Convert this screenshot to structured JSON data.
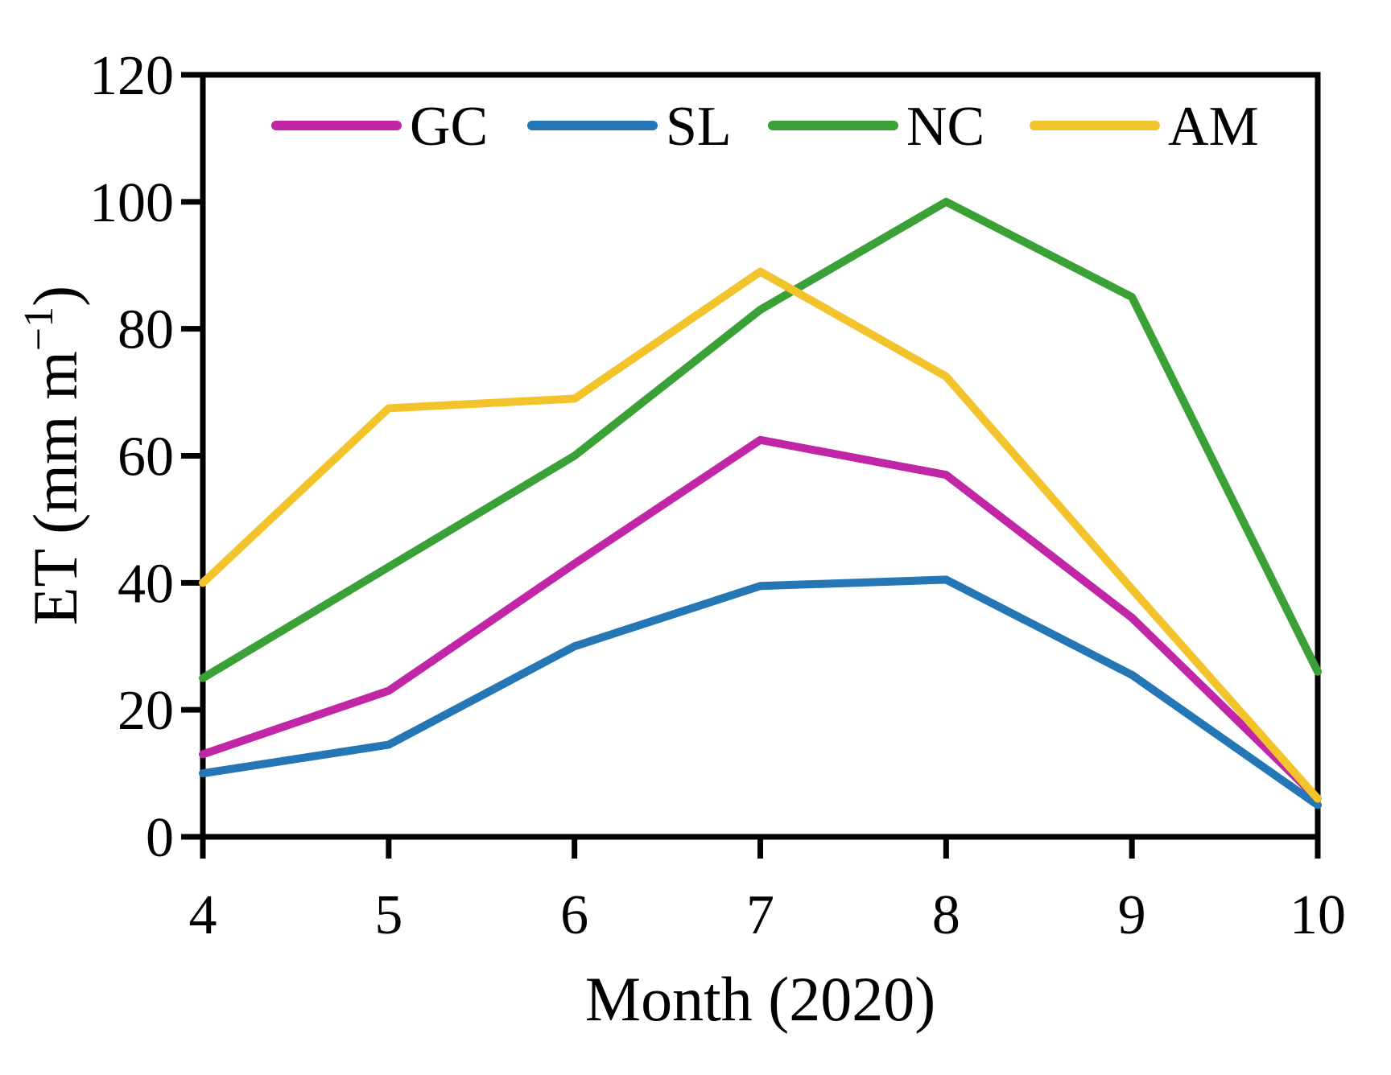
{
  "chart_data": {
    "type": "line",
    "title": "",
    "xlabel": "Month (2020)",
    "ylabel": "ET (mm m⁻¹)",
    "ylabel_parts": {
      "pre": "ET (mm m",
      "sup": "−1",
      "post": ")"
    },
    "x": [
      4,
      5,
      6,
      7,
      8,
      9,
      10
    ],
    "xlim": [
      4,
      10
    ],
    "ylim": [
      0,
      120
    ],
    "xticks": [
      4,
      5,
      6,
      7,
      8,
      9,
      10
    ],
    "yticks": [
      0,
      20,
      40,
      60,
      80,
      100,
      120
    ],
    "x_tick_labels": [
      "4",
      "5",
      "6",
      "7",
      "8",
      "9",
      "10"
    ],
    "y_tick_labels": [
      "0",
      "20",
      "40",
      "60",
      "80",
      "100",
      "120"
    ],
    "grid": false,
    "legend_position": "top-inside-horizontal",
    "series": [
      {
        "name": "GC",
        "color": "#C026A6",
        "values": [
          13,
          23,
          43,
          62.5,
          57,
          34.5,
          6
        ]
      },
      {
        "name": "SL",
        "color": "#2477B4",
        "values": [
          10,
          14.5,
          30,
          39.5,
          40.5,
          25.5,
          5
        ]
      },
      {
        "name": "NC",
        "color": "#39A135",
        "values": [
          25,
          42.5,
          60,
          83,
          100,
          85,
          26
        ]
      },
      {
        "name": "AM",
        "color": "#F3C32C",
        "values": [
          40,
          67.5,
          69,
          89,
          72.5,
          39,
          6
        ]
      }
    ]
  },
  "legend": {
    "items": [
      {
        "label": "GC",
        "color": "#C026A6"
      },
      {
        "label": "SL",
        "color": "#2477B4"
      },
      {
        "label": "NC",
        "color": "#39A135"
      },
      {
        "label": "AM",
        "color": "#F3C32C"
      }
    ]
  },
  "colors": {
    "axis": "#000000",
    "background": "#ffffff",
    "text": "#000000"
  }
}
